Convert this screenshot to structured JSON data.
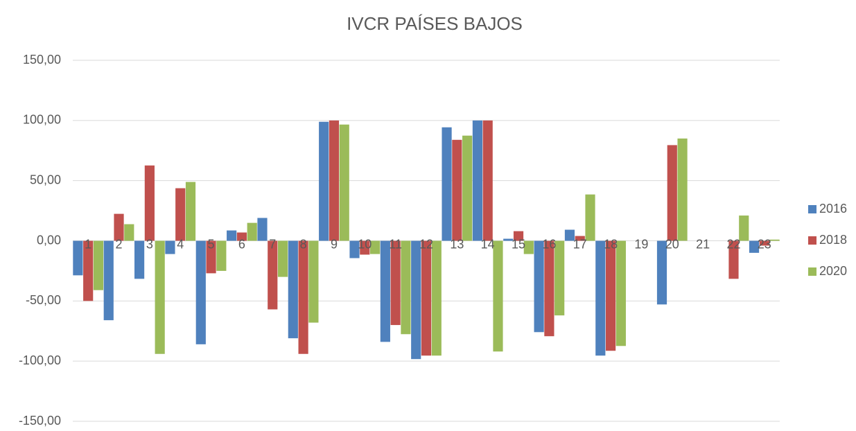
{
  "chart_data": {
    "type": "bar",
    "title": "IVCR PAÍSES BAJOS",
    "categories": [
      "1",
      "2",
      "3",
      "4",
      "5",
      "6",
      "7",
      "8",
      "9",
      "10",
      "11",
      "12",
      "13",
      "14",
      "15",
      "16",
      "17",
      "18",
      "19",
      "20",
      "21",
      "22",
      "23"
    ],
    "series": [
      {
        "name": "2016",
        "color": "#4f81bd",
        "values": [
          -28.7,
          -66,
          -31.6,
          -11,
          -86,
          8.6,
          19,
          -81,
          98.9,
          -14.4,
          -84,
          -98.3,
          94.3,
          100,
          1.7,
          -75.9,
          9.2,
          -95.4,
          0,
          -52.9,
          0,
          0,
          -10
        ]
      },
      {
        "name": "2018",
        "color": "#c0504d",
        "values": [
          -50,
          22.4,
          62.6,
          43.7,
          -27,
          6.9,
          -57,
          -94,
          100,
          -11.5,
          -70,
          -95.4,
          83.9,
          100,
          8,
          -79.3,
          4,
          -91.4,
          0,
          79.5,
          0,
          -31.6,
          -4
        ]
      },
      {
        "name": "2020",
        "color": "#9bbb59",
        "values": [
          -41,
          13.8,
          -94,
          48.9,
          -25,
          14.9,
          -30,
          -68,
          96.6,
          -11,
          -77.6,
          -95.4,
          87.4,
          -92,
          -11,
          -62,
          38.5,
          -87.4,
          0,
          85,
          0,
          21,
          1
        ]
      }
    ],
    "ylim": [
      -150,
      150
    ],
    "yticks": [
      {
        "value": -150,
        "label": "-150,00"
      },
      {
        "value": -100,
        "label": "-100,00"
      },
      {
        "value": -50,
        "label": "-50,00"
      },
      {
        "value": 0,
        "label": "0,00"
      },
      {
        "value": 50,
        "label": "50,00"
      },
      {
        "value": 100,
        "label": "100,00"
      },
      {
        "value": 150,
        "label": "150,00"
      }
    ],
    "grid": true,
    "legend": "right"
  }
}
